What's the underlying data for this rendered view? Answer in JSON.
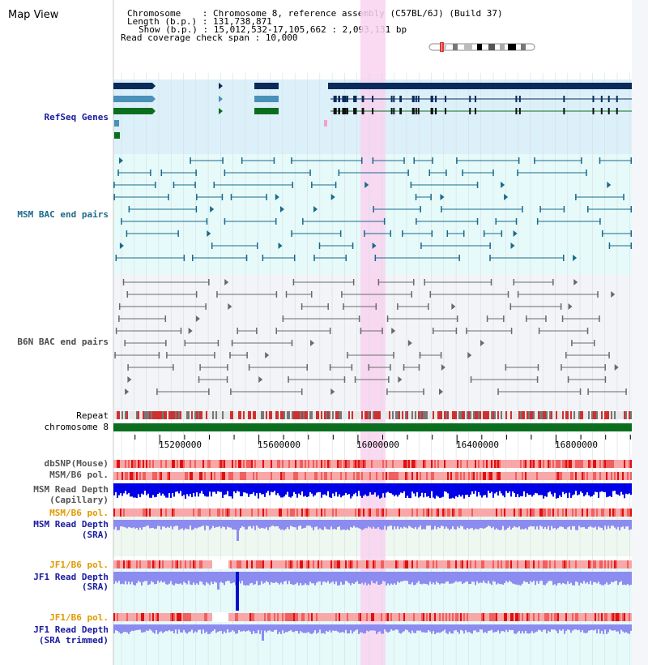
{
  "page": {
    "title": "Map View"
  },
  "header": {
    "chromosome": "Chromosome    : Chromosome 8, reference assembly (C57BL/6J) (Build 37)",
    "length": "Length (b.p.) : 131,738,871",
    "show": "Show (b.p.) : 15,012,532-17,105,662 : 2,093,131 bp",
    "coverage": "Read coverage check span : 10,000"
  },
  "tracks": {
    "refseq": "RefSeq Genes",
    "msm_bac": "MSM BAC end pairs",
    "b6n_bac": "B6N BAC end pairs",
    "repeat": "Repeat",
    "chromosome": "chromosome 8",
    "dbsnp": "dbSNP(Mouse)",
    "msm_pol": "MSM/B6 pol.",
    "msm_depth_cap_1": "MSM Read Depth",
    "msm_depth_cap_2": "(Capillary)",
    "msm_pol_sra": "MSM/B6 pol.",
    "msm_depth_sra_1": "MSM Read Depth",
    "msm_depth_sra_2": "(SRA)",
    "jf1_pol": "JF1/B6 pol.",
    "jf1_depth_1": "JF1 Read Depth",
    "jf1_depth_2": "(SRA)",
    "jf1_pol_trim": "JF1/B6 pol.",
    "jf1_trim_1": "JF1 Read Depth",
    "jf1_trim_2": "(SRA trimmed)"
  },
  "axis": {
    "ticks": [
      "15200000",
      "15600000",
      "16000000",
      "16400000",
      "16800000"
    ],
    "tick_values": [
      15200000,
      15600000,
      16000000,
      16400000,
      16800000
    ],
    "range": [
      15012532,
      17105662
    ]
  },
  "colors": {
    "refseq_bg": "#dcf0fa",
    "bac_bg": "#e6fafa",
    "b6n_bg": "#f2f4f7",
    "highlight": "#f9d2f0",
    "gene_dark": "#0a2a5a",
    "gene_mid": "#4a90b8",
    "gene_green": "#0a6e1e",
    "msm_bac": "#1a6a8a",
    "b6n_bac": "#6a6a6a",
    "chromosome": "#0a6e1e",
    "depth_cap": "#0000e6",
    "depth_sra": "#8c8cf0",
    "label_blue": "#1a1aa0",
    "label_orange": "#e09a00"
  }
}
